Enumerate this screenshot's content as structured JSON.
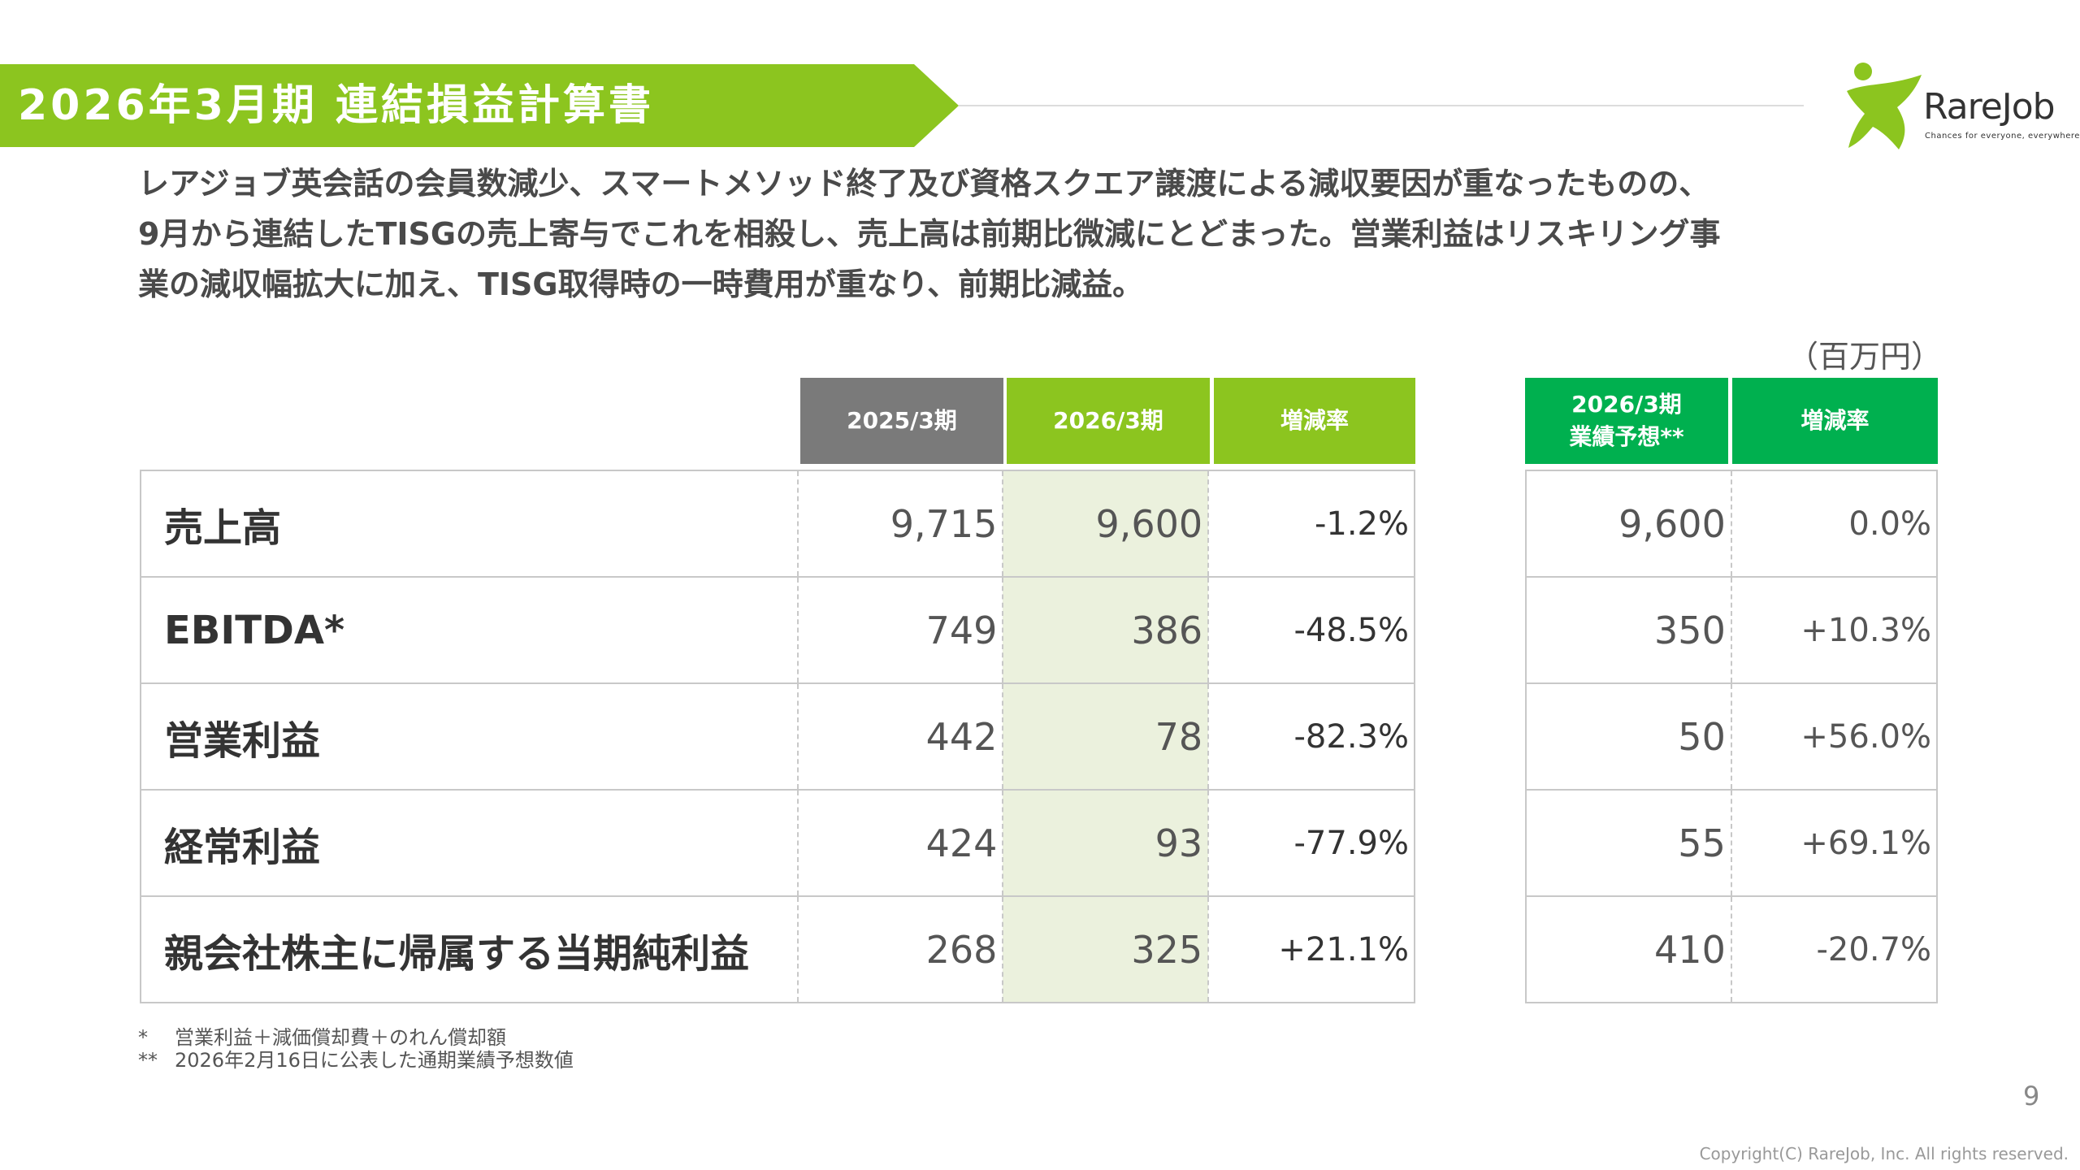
{
  "header": {
    "title": "2026年3月期 連結損益計算書"
  },
  "logo": {
    "name": "RareJob",
    "tagline": "Chances for everyone, everywhere."
  },
  "summary": [
    "レアジョブ英会話の会員数減少、スマートメソッド終了及び資格スクエア譲渡による減収要因が重なったものの、",
    "9月から連結したTISGの売上寄与でこれを相殺し、売上高は前期比微減にとどまった。営業利益はリスキリング事",
    "業の減収幅拡大に加え、TISG取得時の一時費用が重なり、前期比減益。"
  ],
  "unit": "（百万円）",
  "columns": {
    "prev": "2025/3期",
    "curr": "2026/3期",
    "change": "増減率",
    "forecast_line1": "2026/3期",
    "forecast_line2": "業績予想**",
    "forecast_change": "増減率"
  },
  "rows": [
    {
      "label": "売上高",
      "prev": "9,715",
      "curr": "9,600",
      "change": "-1.2%",
      "forecast": "9,600",
      "forecast_change": "0.0%"
    },
    {
      "label": "EBITDA*",
      "prev": "749",
      "curr": "386",
      "change": "-48.5%",
      "forecast": "350",
      "forecast_change": "+10.3%"
    },
    {
      "label": "営業利益",
      "prev": "442",
      "curr": "78",
      "change": "-82.3%",
      "forecast": "50",
      "forecast_change": "+56.0%"
    },
    {
      "label": "経常利益",
      "prev": "424",
      "curr": "93",
      "change": "-77.9%",
      "forecast": "55",
      "forecast_change": "+69.1%"
    },
    {
      "label": "親会社株主に帰属する当期純利益",
      "prev": "268",
      "curr": "325",
      "change": "+21.1%",
      "forecast": "410",
      "forecast_change": "-20.7%"
    }
  ],
  "notes": [
    {
      "mark": "*",
      "text": "営業利益＋減価償却費＋のれん償却額"
    },
    {
      "mark": "**",
      "text": "2026年2月16日に公表した通期業績予想数値"
    }
  ],
  "page_number": "9",
  "copyright": "Copyright(C) RareJob, Inc. All rights reserved.",
  "colors": {
    "accent": "#8cc51f",
    "forecast": "#00b04f",
    "prev_header": "#7a7a7a",
    "highlight": "#ebf1dd"
  }
}
